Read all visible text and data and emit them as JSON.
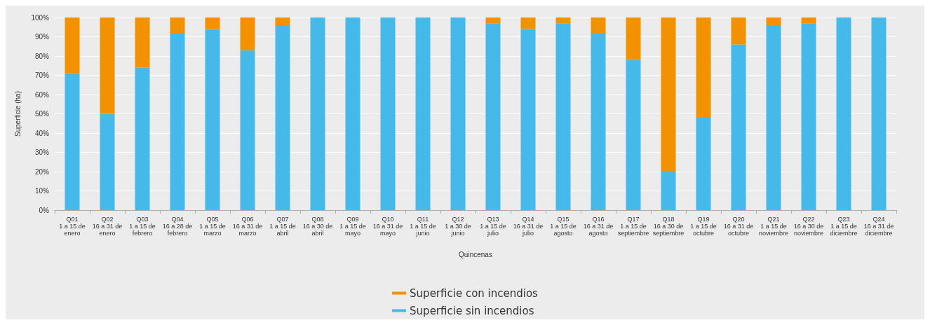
{
  "chart_data": {
    "type": "bar",
    "stacked": true,
    "xlabel": "Quincenas",
    "ylabel": "Superficie (ha)",
    "categories": [
      "Q01\n1 a 15 de\nenero",
      "Q02\n16 a 31 de\nenero",
      "Q03\n1 a 15 de\nfebrero",
      "Q04\n16 a 28 de\nfebrero",
      "Q05\n1 a 15 de\nmarzo",
      "Q06\n16 a 31 de\nmarzo",
      "Q07\n1 a 15 de\nabril",
      "Q08\n16 a 30 de\nabril",
      "Q09\n1 a 15 de\nmayo",
      "Q10\n16 a 31 de\nmayo",
      "Q11\n1 a 15 de\njunio",
      "Q12\n1 a 30 de\njunio",
      "Q13\n1 a 15 de\njulio",
      "Q14\n16 a 31 de\njulio",
      "Q15\n1 a 15 de\nagosto",
      "Q16\n16 a 31 de\nagosto",
      "Q17\n1 a 15 de\nseptiembre",
      "Q18\n16 a 30 de\nseptiembre",
      "Q19\n1 a 15 de\noctubre",
      "Q20\n16 a 31 de\noctubre",
      "Q21\n1 a 15 de\nnoviembre",
      "Q22\n16 a 30 de\nnoviembre",
      "Q23\n1 a 15 de\ndiciembre",
      "Q24\n16 a 31 de\ndiciembre"
    ],
    "series": [
      {
        "name": "Superficie sin incendios",
        "color": "#45b9ea",
        "values": [
          71,
          50,
          74,
          92,
          94,
          83,
          96,
          100,
          100,
          100,
          100,
          100,
          97,
          94,
          97,
          92,
          78,
          20,
          48,
          86,
          96,
          97,
          100,
          100
        ]
      },
      {
        "name": "Superficie con incendios",
        "color": "#f39200",
        "values": [
          29,
          50,
          26,
          8,
          6,
          17,
          4,
          0,
          0,
          0,
          0,
          0,
          3,
          6,
          3,
          8,
          22,
          80,
          52,
          14,
          4,
          3,
          0,
          0
        ]
      }
    ],
    "ylim": [
      0,
      100
    ],
    "yticks": [
      {
        "value": 0,
        "label": "0%"
      },
      {
        "value": 10,
        "label": "10%"
      },
      {
        "value": 20,
        "label": "20%"
      },
      {
        "value": 30,
        "label": "30%"
      },
      {
        "value": 40,
        "label": "40%"
      },
      {
        "value": 50,
        "label": "50%"
      },
      {
        "value": 60,
        "label": "60%"
      },
      {
        "value": 70,
        "label": "70%"
      },
      {
        "value": 80,
        "label": "80%"
      },
      {
        "value": 90,
        "label": "90%"
      },
      {
        "value": 100,
        "label": "100%"
      }
    ],
    "grid": "y",
    "legend": "bottom"
  }
}
